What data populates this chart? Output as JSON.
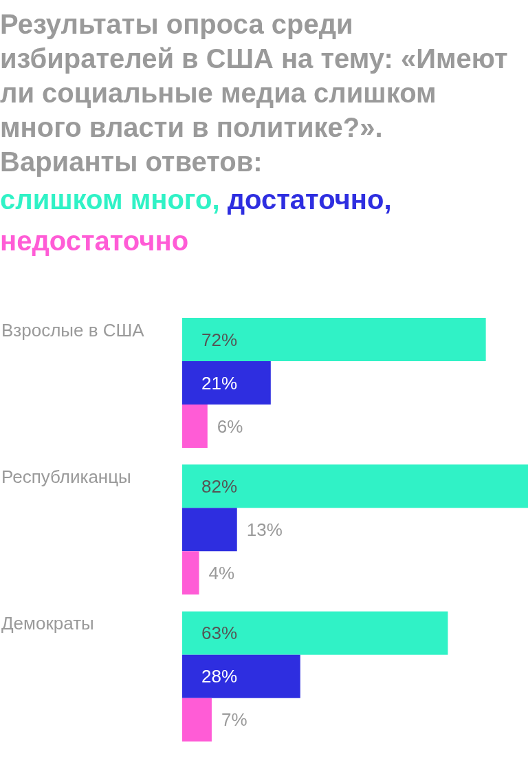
{
  "chart_data": {
    "type": "bar",
    "orientation": "horizontal",
    "title": "Результаты опроса среди избирателей в США на тему: «Имеют ли социальные медиа слишком много власти в политике?». Варианты ответов:",
    "categories": [
      "Взрослые в США",
      "Республиканцы",
      "Демократы"
    ],
    "series": [
      {
        "name": "слишком много,",
        "color": "#30f2c6",
        "values": [
          72,
          82,
          63
        ],
        "value_labels": [
          "72%",
          "82%",
          "63%"
        ]
      },
      {
        "name": "достаточно,",
        "color": "#2e2ee0",
        "values": [
          21,
          13,
          28
        ],
        "value_labels": [
          "21%",
          "13%",
          "28%"
        ]
      },
      {
        "name": "недостаточно",
        "color": "#ff5cd6",
        "values": [
          6,
          4,
          7
        ],
        "value_labels": [
          "6%",
          "4%",
          "7%"
        ]
      }
    ],
    "xlim": [
      0,
      82
    ],
    "tick_labels": false,
    "grid": false,
    "legend": "top"
  }
}
